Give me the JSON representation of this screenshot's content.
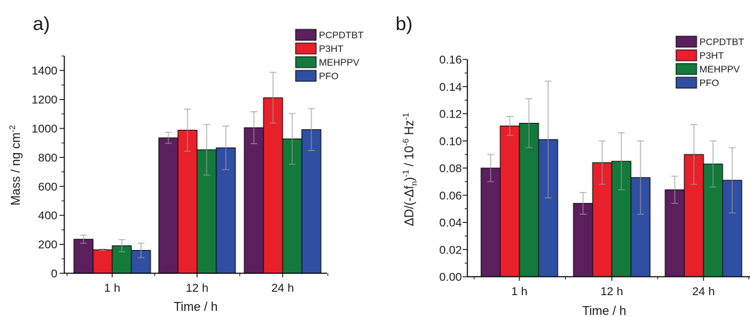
{
  "chart_data": [
    {
      "type": "bar",
      "panel_label": "a)",
      "categories": [
        "1 h",
        "12 h",
        "24 h"
      ],
      "xlabel": "Time / h",
      "ylabel_parts": [
        "Mass / ng cm",
        "-2"
      ],
      "ylim": [
        0,
        1500
      ],
      "yticks": [
        "0",
        "200",
        "400",
        "600",
        "800",
        "1000",
        "1200",
        "1400"
      ],
      "legend_position": "top-right",
      "series": [
        {
          "name": "PCPDTBT",
          "color": "#5b1f5e",
          "values": [
            235,
            935,
            1005
          ],
          "errors": [
            28,
            38,
            110
          ]
        },
        {
          "name": "P3HT",
          "color": "#e8202a",
          "values": [
            162,
            988,
            1212
          ],
          "errors": [
            5,
            145,
            175
          ]
        },
        {
          "name": "MEHPPV",
          "color": "#137a3c",
          "values": [
            190,
            853,
            928
          ],
          "errors": [
            42,
            175,
            175
          ]
        },
        {
          "name": "PFO",
          "color": "#2f4fa2",
          "values": [
            158,
            866,
            992
          ],
          "errors": [
            50,
            150,
            145
          ]
        }
      ]
    },
    {
      "type": "bar",
      "panel_label": "b)",
      "categories": [
        "1 h",
        "12 h",
        "24 h"
      ],
      "xlabel": "Time / h",
      "ylabel_parts": [
        "ΔD/(-Δf",
        "n",
        ")",
        "-1",
        " / 10",
        "-6",
        " Hz",
        "-1"
      ],
      "ylim": [
        0,
        0.16
      ],
      "yticks": [
        "0.00",
        "0.02",
        "0.04",
        "0.06",
        "0.08",
        "0.10",
        "0.12",
        "0.14",
        "0.16"
      ],
      "legend_position": "top-right",
      "series": [
        {
          "name": "PCPDTBT",
          "color": "#5b1f5e",
          "values": [
            0.08,
            0.054,
            0.064
          ],
          "errors": [
            0.01,
            0.008,
            0.01
          ]
        },
        {
          "name": "P3HT",
          "color": "#e8202a",
          "values": [
            0.111,
            0.084,
            0.09
          ],
          "errors": [
            0.007,
            0.016,
            0.022
          ]
        },
        {
          "name": "MEHPPV",
          "color": "#137a3c",
          "values": [
            0.113,
            0.085,
            0.083
          ],
          "errors": [
            0.018,
            0.021,
            0.017
          ]
        },
        {
          "name": "PFO",
          "color": "#2f4fa2",
          "values": [
            0.101,
            0.073,
            0.071
          ],
          "errors": [
            0.043,
            0.027,
            0.024
          ]
        }
      ]
    }
  ]
}
